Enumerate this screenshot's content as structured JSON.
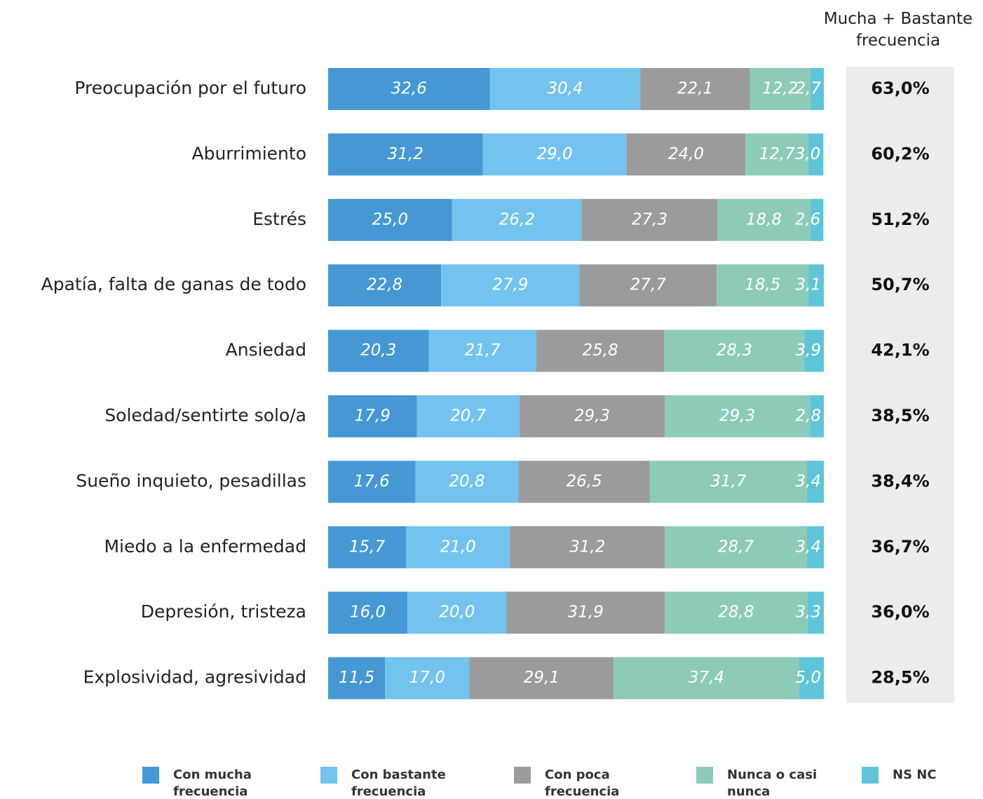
{
  "chart_data": {
    "type": "stacked-bar-horizontal",
    "categories": [
      "Preocupación por el futuro",
      "Aburrimiento",
      "Estrés",
      "Apatía, falta de ganas de todo",
      "Ansiedad",
      "Soledad/sentirte solo/a",
      "Sueño inquieto, pesadillas",
      "Miedo a la enfermedad",
      "Depresión, tristeza",
      "Explosividad, agresividad"
    ],
    "xlim": [
      0,
      100
    ],
    "series": [
      {
        "name": "Con mucha frecuencia",
        "color": "#4598d4",
        "values": [
          32.6,
          31.2,
          25.0,
          22.8,
          20.3,
          17.9,
          17.6,
          15.7,
          16.0,
          11.5
        ],
        "value_labels": [
          "32,6",
          "31,2",
          "25,0",
          "22,8",
          "20,3",
          "17,9",
          "17,6",
          "15,7",
          "16,0",
          "11,5"
        ]
      },
      {
        "name": "Con bastante frecuencia",
        "color": "#74c3ee",
        "values": [
          30.4,
          29.0,
          26.2,
          27.9,
          21.7,
          20.7,
          20.8,
          21.0,
          20.0,
          17.0
        ],
        "value_labels": [
          "30,4",
          "29,0",
          "26,2",
          "27,9",
          "21,7",
          "20,7",
          "20,8",
          "21,0",
          "20,0",
          "17,0"
        ]
      },
      {
        "name": "Con poca frecuencia",
        "color": "#9b9b9b",
        "values": [
          22.1,
          24.0,
          27.3,
          27.7,
          25.8,
          29.3,
          26.5,
          31.2,
          31.9,
          29.1
        ],
        "value_labels": [
          "22,1",
          "24,0",
          "27,3",
          "27,7",
          "25,8",
          "29,3",
          "26,5",
          "31,2",
          "31,9",
          "29,1"
        ]
      },
      {
        "name": "Nunca o casi nunca",
        "color": "#8dcbb8",
        "values": [
          12.2,
          12.7,
          18.8,
          18.5,
          28.3,
          29.3,
          31.7,
          28.7,
          28.8,
          37.4
        ],
        "value_labels": [
          "12,2",
          "12,7",
          "18,8",
          "18,5",
          "28,3",
          "29,3",
          "31,7",
          "28,7",
          "28,8",
          "37,4"
        ]
      },
      {
        "name": "NS NC",
        "color": "#5fc4d8",
        "values": [
          2.7,
          3.0,
          2.6,
          3.1,
          3.9,
          2.8,
          3.4,
          3.4,
          3.3,
          5.0
        ],
        "value_labels": [
          "2,7",
          "3,0",
          "2,6",
          "3,1",
          "3,9",
          "2,8",
          "3,4",
          "3,4",
          "3,3",
          "5,0"
        ]
      }
    ],
    "totals": {
      "title": "Mucha + Bastante frecuencia",
      "values": [
        63.0,
        60.2,
        51.2,
        50.7,
        42.1,
        38.5,
        38.4,
        36.7,
        36.0,
        28.5
      ],
      "value_labels": [
        "63,0%",
        "60,2%",
        "51,2%",
        "50,7%",
        "42,1%",
        "38,5%",
        "38,4%",
        "36,7%",
        "36,0%",
        "28,5%"
      ]
    }
  }
}
